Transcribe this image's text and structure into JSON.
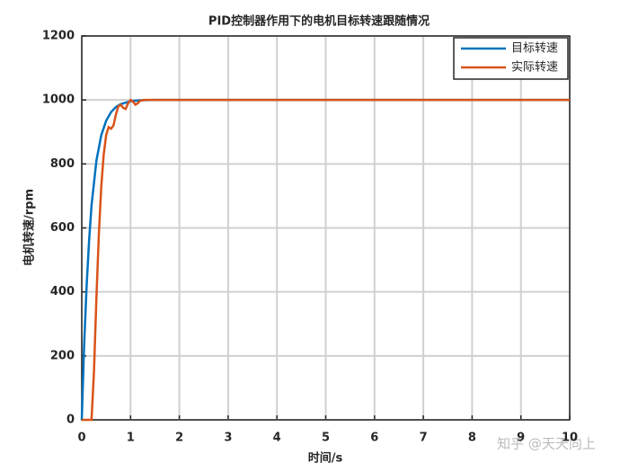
{
  "chart_data": {
    "type": "line",
    "title": "PID控制器作用下的电机目标转速跟随情况",
    "x_label": "时间/s",
    "y_label": "电机转速/rpm",
    "series": [
      {
        "name": "目标转速",
        "color": "#0072BD",
        "x": [
          0,
          0.05,
          0.1,
          0.15,
          0.2,
          0.3,
          0.4,
          0.5,
          0.6,
          0.7,
          0.8,
          1.0,
          1.2,
          1.5,
          2,
          10
        ],
        "values": [
          0,
          240,
          420,
          560,
          670,
          810,
          890,
          935,
          962,
          978,
          987,
          996,
          999,
          1000,
          1000,
          1000
        ]
      },
      {
        "name": "实际转速",
        "color": "#D95319",
        "x": [
          0,
          0.2,
          0.25,
          0.3,
          0.35,
          0.4,
          0.45,
          0.5,
          0.55,
          0.6,
          0.65,
          0.7,
          0.75,
          0.8,
          0.85,
          0.9,
          0.95,
          1.0,
          1.05,
          1.1,
          1.15,
          1.2,
          1.3,
          1.5,
          2,
          10
        ],
        "values": [
          0,
          0,
          150,
          380,
          580,
          730,
          830,
          890,
          915,
          910,
          920,
          955,
          980,
          985,
          975,
          972,
          990,
          1000,
          995,
          985,
          990,
          998,
          1000,
          1000,
          1000,
          1000
        ]
      }
    ],
    "xlim": [
      0,
      10
    ],
    "xticks": [
      0,
      1,
      2,
      3,
      4,
      5,
      6,
      7,
      8,
      9,
      10
    ],
    "ylim": [
      0,
      1200
    ],
    "yticks": [
      0,
      200,
      400,
      600,
      800,
      1000,
      1200
    ],
    "grid": true,
    "legend_position": "top-right",
    "watermark": "知乎 @天天向上"
  }
}
